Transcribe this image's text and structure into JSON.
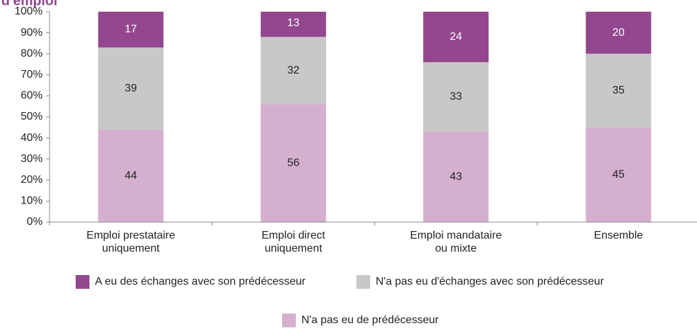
{
  "chart_data": {
    "type": "stacked_bar",
    "title": "d'emploi",
    "categories": [
      "Emploi prestataire uniquement",
      "Emploi direct uniquement",
      "Emploi mandataire ou mixte",
      "Ensemble"
    ],
    "series": [
      {
        "name": "N'a pas eu de prédécesseur",
        "color": "#d4afce",
        "values": [
          44,
          56,
          43,
          45
        ]
      },
      {
        "name": "N'a pas eu d'échanges avec son prédécesseur",
        "color": "#c8c8c8",
        "values": [
          39,
          32,
          33,
          35
        ]
      },
      {
        "name": "A eu des échanges avec son prédécesseur",
        "color": "#93478f",
        "values": [
          17,
          13,
          24,
          20
        ]
      }
    ],
    "ylim": [
      0,
      100
    ],
    "yticks": [
      {
        "value": 0,
        "label": "0%"
      },
      {
        "value": 10,
        "label": "10%"
      },
      {
        "value": 20,
        "label": "20%"
      },
      {
        "value": 30,
        "label": "30%"
      },
      {
        "value": 40,
        "label": "40%"
      },
      {
        "value": 50,
        "label": "50%"
      },
      {
        "value": 60,
        "label": "60%"
      },
      {
        "value": 70,
        "label": "70%"
      },
      {
        "value": 80,
        "label": "80%"
      },
      {
        "value": 90,
        "label": "90%"
      },
      {
        "value": 100,
        "label": "100%"
      }
    ],
    "grid": false
  }
}
